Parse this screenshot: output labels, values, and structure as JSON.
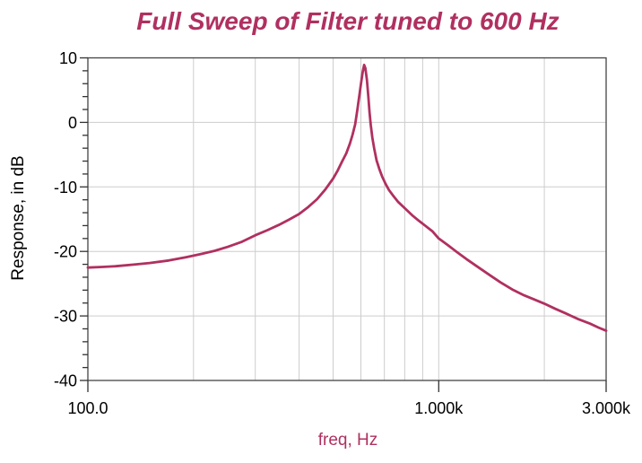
{
  "title": "Full Sweep of Filter tuned to 600 Hz",
  "colors": {
    "accent": "#b03060",
    "curve": "#b03060",
    "grid": "#cdcdcd",
    "axis": "#444444",
    "tick": "#333333",
    "text": "#000000",
    "background": "#ffffff"
  },
  "chart_data": {
    "type": "line",
    "title": "Full Sweep of Filter tuned to 600 Hz",
    "xlabel": "freq, Hz",
    "ylabel": "Response, in dB",
    "x_scale": "log",
    "xlim": [
      100,
      3000
    ],
    "ylim": [
      -40,
      10
    ],
    "grid": true,
    "legend": "none",
    "x_ticks": [
      {
        "value": 100,
        "label": "100.0"
      },
      {
        "value": 1000,
        "label": "1.000k"
      },
      {
        "value": 3000,
        "label": "3.000k"
      }
    ],
    "y_ticks": [
      {
        "value": 10,
        "label": "10"
      },
      {
        "value": 0,
        "label": "0"
      },
      {
        "value": -10,
        "label": "-10"
      },
      {
        "value": -20,
        "label": "-20"
      },
      {
        "value": -30,
        "label": "-30"
      },
      {
        "value": -40,
        "label": "-40"
      }
    ],
    "y_minor_tick_step": 2,
    "x_gridlines": [
      200,
      300,
      400,
      500,
      600,
      700,
      800,
      900,
      1000,
      2000
    ],
    "y_gridlines": [
      0,
      -10,
      -20,
      -30
    ],
    "peak": {
      "freq_hz": 613,
      "response_db": 8.9
    },
    "series": [
      {
        "name": "Response",
        "color": "#b03060",
        "points": [
          [
            100,
            -22.5
          ],
          [
            110,
            -22.4
          ],
          [
            120,
            -22.3
          ],
          [
            135,
            -22.05
          ],
          [
            150,
            -21.8
          ],
          [
            170,
            -21.4
          ],
          [
            190,
            -20.9
          ],
          [
            210,
            -20.4
          ],
          [
            230,
            -19.9
          ],
          [
            250,
            -19.3
          ],
          [
            275,
            -18.5
          ],
          [
            300,
            -17.5
          ],
          [
            325,
            -16.7
          ],
          [
            350,
            -15.9
          ],
          [
            375,
            -15.05
          ],
          [
            400,
            -14.2
          ],
          [
            425,
            -13.1
          ],
          [
            450,
            -11.9
          ],
          [
            475,
            -10.4
          ],
          [
            500,
            -8.7
          ],
          [
            515,
            -7.5
          ],
          [
            530,
            -6.1
          ],
          [
            545,
            -4.8
          ],
          [
            558,
            -3.3
          ],
          [
            568,
            -1.9
          ],
          [
            578,
            -0.3
          ],
          [
            586,
            1.9
          ],
          [
            594,
            4.2
          ],
          [
            601,
            6.2
          ],
          [
            607,
            7.8
          ],
          [
            613,
            8.9
          ],
          [
            618,
            8.4
          ],
          [
            624,
            6.6
          ],
          [
            630,
            4.0
          ],
          [
            635,
            1.6
          ],
          [
            640,
            -0.4
          ],
          [
            647,
            -2.4
          ],
          [
            655,
            -4.1
          ],
          [
            665,
            -5.9
          ],
          [
            677,
            -7.2
          ],
          [
            690,
            -8.4
          ],
          [
            705,
            -9.5
          ],
          [
            722,
            -10.5
          ],
          [
            740,
            -11.3
          ],
          [
            765,
            -12.3
          ],
          [
            800,
            -13.3
          ],
          [
            840,
            -14.4
          ],
          [
            880,
            -15.3
          ],
          [
            920,
            -16.1
          ],
          [
            960,
            -16.9
          ],
          [
            1000,
            -18.0
          ],
          [
            1060,
            -19.0
          ],
          [
            1120,
            -20.0
          ],
          [
            1200,
            -21.2
          ],
          [
            1300,
            -22.5
          ],
          [
            1400,
            -23.7
          ],
          [
            1500,
            -24.8
          ],
          [
            1620,
            -25.9
          ],
          [
            1750,
            -26.8
          ],
          [
            1880,
            -27.5
          ],
          [
            2000,
            -28.1
          ],
          [
            2150,
            -28.9
          ],
          [
            2300,
            -29.6
          ],
          [
            2500,
            -30.5
          ],
          [
            2700,
            -31.2
          ],
          [
            2850,
            -31.8
          ],
          [
            3000,
            -32.3
          ]
        ]
      }
    ]
  }
}
